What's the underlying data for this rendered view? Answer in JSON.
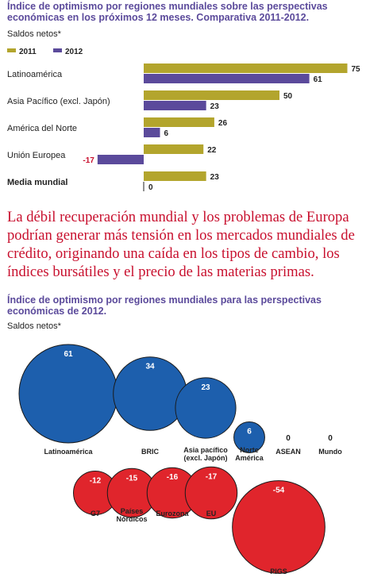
{
  "chart_data": [
    {
      "type": "bar",
      "orientation": "horizontal",
      "title_lines": [
        "Índice de optimismo  por regiones mundiales sobre las perspectivas",
        "económicas en los próximos 12 meses. Comparativa 2011-2012."
      ],
      "subtitle": "Saldos netos*",
      "categories": [
        "Latinoamérica",
        "Asia Pacífico (excl. Japón)",
        "América del Norte",
        "Unión Europea",
        "Media mundial"
      ],
      "series": [
        {
          "name": "2011",
          "values": [
            75,
            50,
            26,
            22,
            23
          ],
          "color": "#b3a52d"
        },
        {
          "name": "2012",
          "values": [
            61,
            23,
            6,
            -17,
            0
          ],
          "color": "#5b4a9b"
        }
      ],
      "bold_categories": [
        "Media mundial"
      ],
      "negative_value_color": "#c8102e",
      "legend_position": "top-left",
      "grid": false
    },
    {
      "type": "bubble",
      "title_lines": [
        "Índice de optimismo por regiones mundiales para las perspectivas",
        "económicas de 2012."
      ],
      "subtitle": "Saldos netos*",
      "positive_color": "#1d5fad",
      "negative_color": "#e0252c",
      "rows": [
        {
          "points": [
            {
              "label": [
                "Latinoamérica"
              ],
              "value": 61
            },
            {
              "label": [
                "BRIC"
              ],
              "value": 34
            },
            {
              "label": [
                "Asia pacífico",
                "(excl. Japón)"
              ],
              "value": 23
            },
            {
              "label": [
                "Norte",
                "América"
              ],
              "value": 6
            },
            {
              "label": [
                "ASEAN"
              ],
              "value": 0
            },
            {
              "label": [
                "Mundo"
              ],
              "value": 0
            }
          ]
        },
        {
          "points": [
            {
              "label": [
                "G7"
              ],
              "value": -12
            },
            {
              "label": [
                "Países",
                "Nórdicos"
              ],
              "value": -15
            },
            {
              "label": [
                "Eurozona"
              ],
              "value": -16
            },
            {
              "label": [
                "EU"
              ],
              "value": -17
            },
            {
              "label": [
                "PIGS"
              ],
              "value": -54
            }
          ]
        }
      ]
    }
  ],
  "paragraph": "La débil recuperación mundial y los problemas de Europa podrían generar más tensión en los mercados mundiales de crédito, originando una caída en los tipos de cambio, los índices bursátiles y el precio de las materias primas."
}
